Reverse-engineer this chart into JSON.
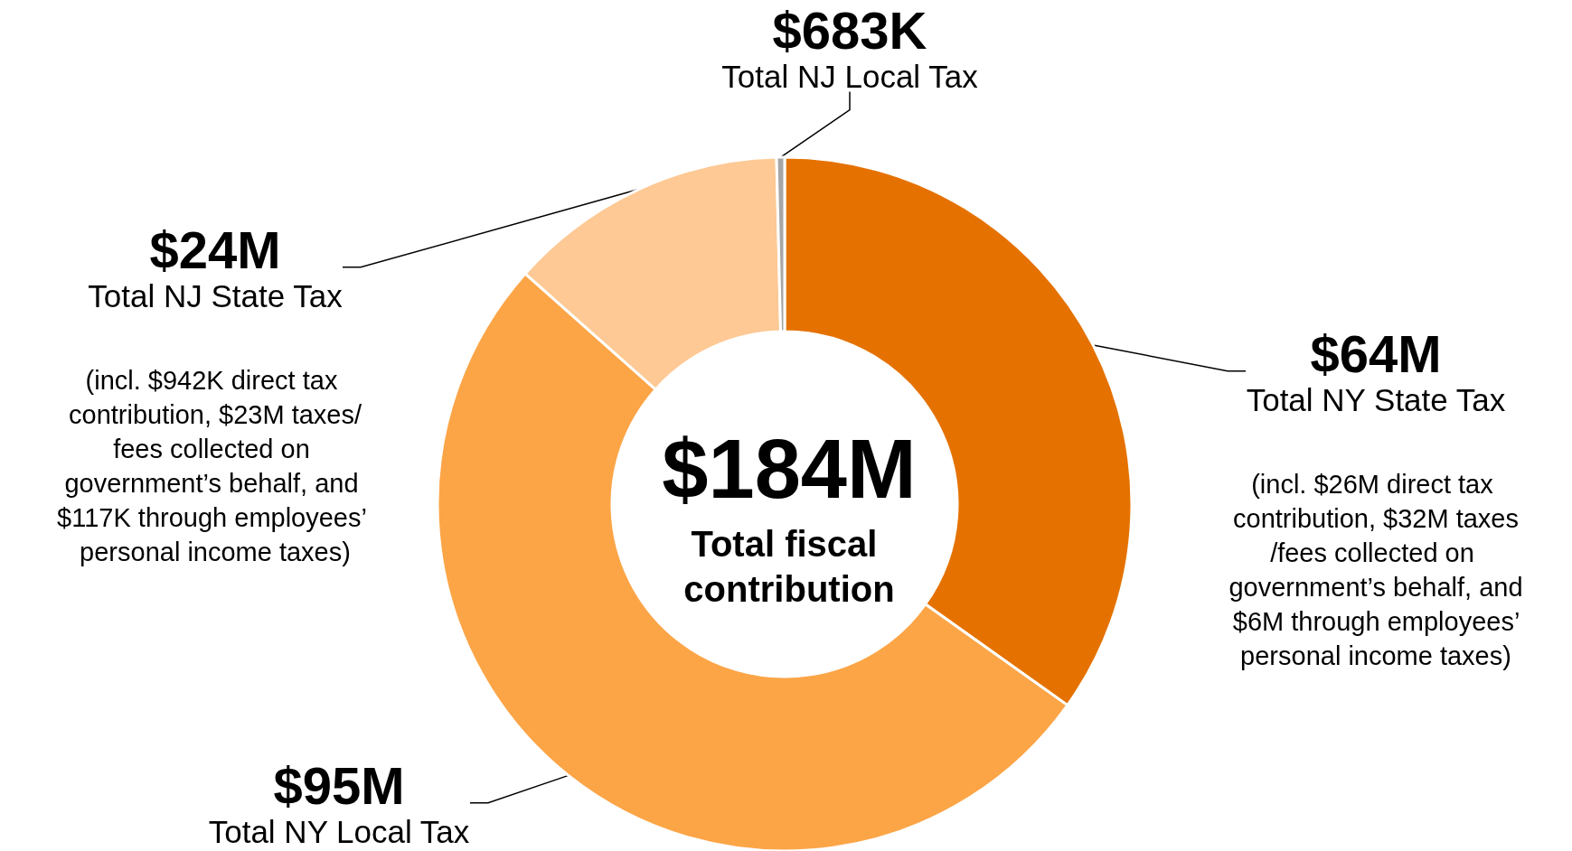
{
  "chart_data": {
    "type": "donut",
    "title": "$184M",
    "subtitle": "Total fiscal contribution",
    "categories": [
      "Total NY State Tax",
      "Total NY Local Tax",
      "Total NJ State Tax",
      "Total NJ Local Tax"
    ],
    "values": [
      64000000,
      95000000,
      24000000,
      683000
    ],
    "value_labels": [
      "$64M",
      "$95M",
      "$24M",
      "$683K"
    ],
    "colors": [
      "#e57200",
      "#fca547",
      "#fec994",
      "#a6a6a6"
    ],
    "annotations": [
      "(incl. $26M direct tax contribution, $32M taxes/fees collected on government’s behalf, and $6M through employees’ personal income taxes)",
      "(incl. $942K direct tax contribution, $23M taxes/fees collected on government’s behalf, and $117K through employees’ personal income taxes)"
    ]
  }
}
